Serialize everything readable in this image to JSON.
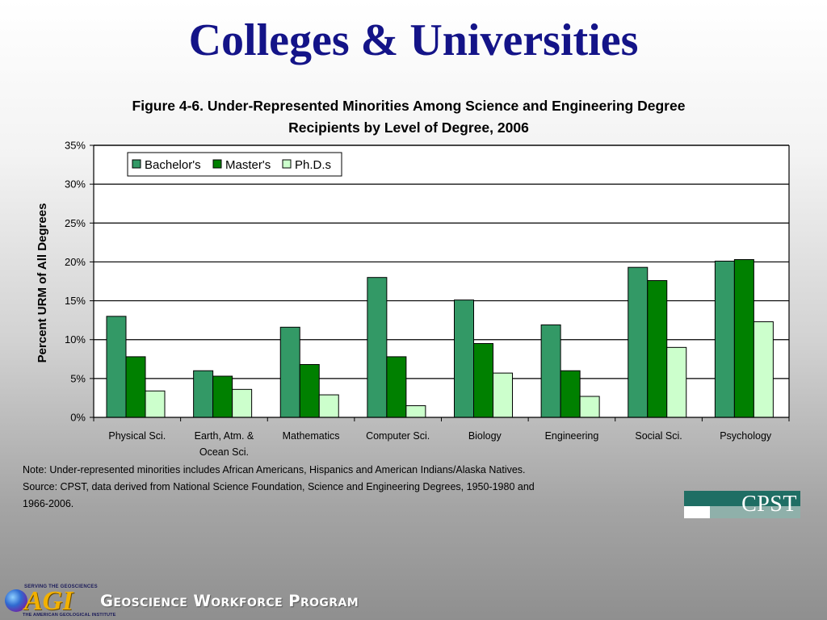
{
  "slide": {
    "title": "Colleges & Universities",
    "note_lines": [
      "Note: Under-represented minorities includes African Americans, Hispanics and American Indians/Alaska Natives.",
      "Source: CPST, data derived from National Science Foundation, Science and Engineering Degrees, 1950-1980 and",
      "1966-2006."
    ],
    "footer_program": "Geoscience Workforce Program",
    "logo_cpst": "CPST",
    "logo_agi": "AGI",
    "logo_agi_tag_top": "SERVING THE GEOSCIENCES",
    "logo_agi_tag_bottom": "THE AMERICAN GEOLOGICAL INSTITUTE"
  },
  "chart_data": {
    "type": "bar",
    "title_lines": [
      "Figure 4-6. Under-Represented Minorities Among Science and Engineering Degree",
      "Recipients by Level of Degree, 2006"
    ],
    "xlabel": "",
    "ylabel": "Percent URM of All Degrees",
    "ylim": [
      0,
      35
    ],
    "yticks": [
      0,
      5,
      10,
      15,
      20,
      25,
      30,
      35
    ],
    "ytick_labels": [
      "0%",
      "5%",
      "10%",
      "15%",
      "20%",
      "25%",
      "30%",
      "35%"
    ],
    "grid": true,
    "legend_position": "top-left",
    "categories": [
      [
        "Physical Sci."
      ],
      [
        "Earth, Atm. &",
        "Ocean Sci."
      ],
      [
        "Mathematics"
      ],
      [
        "Computer Sci."
      ],
      [
        "Biology"
      ],
      [
        "Engineering"
      ],
      [
        "Social Sci."
      ],
      [
        "Psychology"
      ]
    ],
    "series": [
      {
        "name": "Bachelor's",
        "color": "#339966",
        "values": [
          13.0,
          6.0,
          11.6,
          18.0,
          15.1,
          11.9,
          19.3,
          20.1
        ]
      },
      {
        "name": "Master's",
        "color": "#008000",
        "values": [
          7.8,
          5.3,
          6.8,
          7.8,
          9.5,
          6.0,
          17.6,
          20.3
        ]
      },
      {
        "name": "Ph.D.s",
        "color": "#ccffcc",
        "values": [
          3.4,
          3.6,
          2.9,
          1.5,
          5.7,
          2.7,
          9.0,
          12.3
        ]
      }
    ]
  }
}
